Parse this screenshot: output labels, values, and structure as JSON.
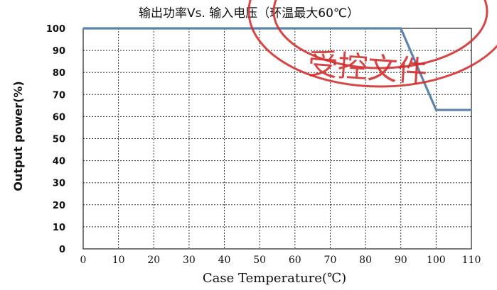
{
  "chart_data": {
    "type": "line",
    "title": "输出功率Vs. 输入电压（环温最大60℃）",
    "xlabel": "Case Temperature(℃)",
    "ylabel": "Output power(%)",
    "xlim": [
      0,
      110
    ],
    "ylim": [
      0,
      100
    ],
    "x_ticks": [
      0,
      10,
      20,
      30,
      40,
      50,
      60,
      70,
      80,
      90,
      100,
      110
    ],
    "y_ticks": [
      0,
      10,
      20,
      30,
      40,
      50,
      60,
      70,
      80,
      90,
      100
    ],
    "grid": true,
    "series": [
      {
        "x": [
          0,
          90,
          100,
          110
        ],
        "y": [
          100,
          100,
          63,
          63
        ],
        "color": "#5b85ad"
      }
    ]
  },
  "stamp": {
    "text": "受控文件",
    "color": "#d12b2b"
  }
}
